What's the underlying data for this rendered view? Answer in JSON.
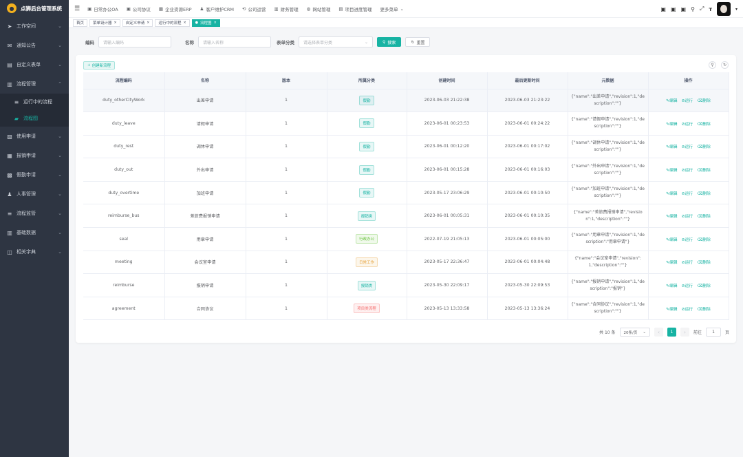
{
  "app": {
    "title": "点狮后台管理系统"
  },
  "sidebar": {
    "items": [
      {
        "label": "工作空间",
        "icon": "send-icon"
      },
      {
        "label": "通知公告",
        "icon": "mail-icon"
      },
      {
        "label": "自定义表单",
        "icon": "form-icon"
      },
      {
        "label": "流程管理",
        "icon": "bar-chart-icon",
        "expanded": true,
        "children": [
          {
            "label": "运行中的流程",
            "icon": "list-icon"
          },
          {
            "label": "流程图",
            "icon": "flow-icon",
            "active": true
          }
        ]
      },
      {
        "label": "使用申请",
        "icon": "file-icon"
      },
      {
        "label": "报销申请",
        "icon": "doc-icon"
      },
      {
        "label": "假勤申请",
        "icon": "grid-icon"
      },
      {
        "label": "人事管理",
        "icon": "user-icon"
      },
      {
        "label": "流程监管",
        "icon": "list-icon"
      },
      {
        "label": "基础数据",
        "icon": "bar-chart-icon"
      },
      {
        "label": "相关字典",
        "icon": "dict-icon"
      }
    ]
  },
  "topnav": {
    "items": [
      "日常办公OA",
      "公司协议",
      "企业资源ERP",
      "客户维护CRM",
      "公司运营",
      "财务管理",
      "网站管理",
      "项目进度管理",
      "更多菜单"
    ]
  },
  "tabs": [
    {
      "label": "首页",
      "closable": false
    },
    {
      "label": "菜单设计器",
      "closable": true
    },
    {
      "label": "自定义申请",
      "closable": true
    },
    {
      "label": "运行中的流程",
      "closable": true
    },
    {
      "label": "流程图",
      "closable": true,
      "active": true
    }
  ],
  "search": {
    "code_label": "编码",
    "code_placeholder": "请输入编码",
    "name_label": "名称",
    "name_placeholder": "请输入名称",
    "category_label": "表单分类",
    "category_placeholder": "请选择表单分类",
    "search_btn": "搜索",
    "reset_btn": "重置"
  },
  "table": {
    "add_btn": "创建新流程",
    "columns": [
      "流程编码",
      "名称",
      "版本",
      "所属分类",
      "创建时间",
      "最后更新时间",
      "元数据",
      "操作"
    ],
    "op_labels": [
      "编辑",
      "运行",
      "删除"
    ],
    "rows": [
      {
        "code": "duty_otherCityWork",
        "name": "出差申请",
        "version": "1",
        "category": "假勤",
        "cat_color": "#17b3a3",
        "created": "2023-06-03 21:22:38",
        "updated": "2023-06-03 21:23:22",
        "meta": "{\"name\":\"出差申请\",\"revision\":1,\"description\":\"\"}"
      },
      {
        "code": "duty_leave",
        "name": "请假申请",
        "version": "1",
        "category": "假勤",
        "cat_color": "#17b3a3",
        "created": "2023-06-01 00:23:53",
        "updated": "2023-06-01 00:24:22",
        "meta": "{\"name\":\"请假申请\",\"revision\":1,\"description\":\"\"}"
      },
      {
        "code": "duty_rest",
        "name": "调休申请",
        "version": "1",
        "category": "假勤",
        "cat_color": "#17b3a3",
        "created": "2023-06-01 00:12:20",
        "updated": "2023-06-01 00:17:02",
        "meta": "{\"name\":\"调休申请\",\"revision\":1,\"description\":\"\"}"
      },
      {
        "code": "duty_out",
        "name": "外出申请",
        "version": "1",
        "category": "假勤",
        "cat_color": "#17b3a3",
        "created": "2023-06-01 00:15:28",
        "updated": "2023-06-01 00:16:03",
        "meta": "{\"name\":\"外出申请\",\"revision\":1,\"description\":\"\"}"
      },
      {
        "code": "duty_overtime",
        "name": "加班申请",
        "version": "1",
        "category": "假勤",
        "cat_color": "#17b3a3",
        "created": "2023-05-17 23:06:29",
        "updated": "2023-06-01 00:10:50",
        "meta": "{\"name\":\"加班申请\",\"revision\":1,\"description\":\"\"}"
      },
      {
        "code": "reimburse_bus",
        "name": "差旅费报销申请",
        "version": "1",
        "category": "报销类",
        "cat_color": "#17b3a3",
        "created": "2023-06-01 00:05:31",
        "updated": "2023-06-01 00:10:35",
        "meta": "{\"name\":\"差旅费报销申请\",\"revision\":1,\"description\":\"\"}"
      },
      {
        "code": "seal",
        "name": "用章申请",
        "version": "1",
        "category": "行政办公",
        "cat_color": "#67c23a",
        "created": "2022-07-19 21:05:13",
        "updated": "2023-06-01 00:05:00",
        "meta": "{\"name\":\"用章申请\",\"revision\":1,\"description\":\"用章申请\"}"
      },
      {
        "code": "meeting",
        "name": "会议室申请",
        "version": "1",
        "category": "日常工作",
        "cat_color": "#e6a23c",
        "created": "2023-05-17 22:36:47",
        "updated": "2023-06-01 00:04:48",
        "meta": "{\"name\":\"会议室申请\",\"revision\":1,\"description\":\"\"}"
      },
      {
        "code": "reimburse",
        "name": "报销申请",
        "version": "1",
        "category": "报销类",
        "cat_color": "#17b3a3",
        "created": "2023-05-30 22:09:17",
        "updated": "2023-05-30 22:09:53",
        "meta": "{\"name\":\"报销申请\",\"revision\":1,\"description\":\"报销\"}"
      },
      {
        "code": "agreement",
        "name": "合同协议",
        "version": "1",
        "category": "项目类流程",
        "cat_color": "#f56c6c",
        "created": "2023-05-13 13:33:58",
        "updated": "2023-05-13 13:36:24",
        "meta": "{\"name\":\"合同协议\",\"revision\":1,\"description\":\"\"}"
      }
    ]
  },
  "pager": {
    "total_text": "共 10 条",
    "page_size": "20条/页",
    "current": "1",
    "goto_label": "前往",
    "goto_value": "1",
    "page_unit": "页"
  }
}
